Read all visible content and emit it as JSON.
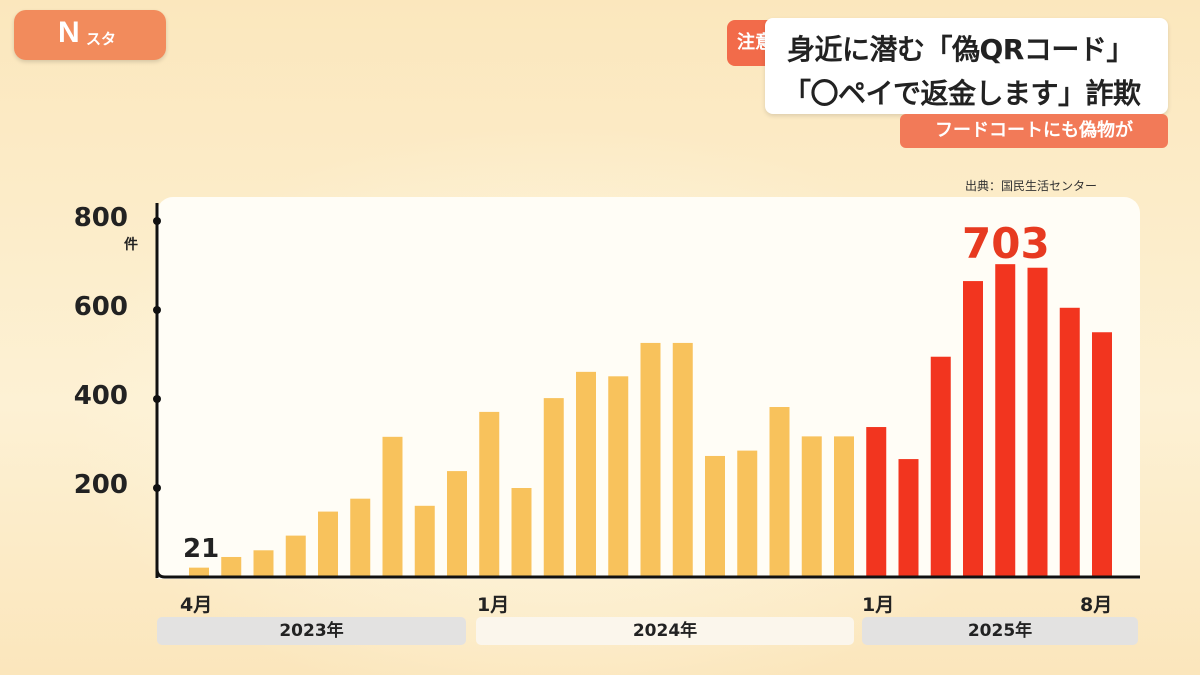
{
  "logo": {
    "letter": "N",
    "suffix": "スタ"
  },
  "headline": {
    "badge": "注意",
    "line1": "身近に潜む「偽QRコード」",
    "line2": "「〇ペイで返金します」詐欺",
    "sub": "フードコートにも偽物が"
  },
  "source": "出典：国民生活センター",
  "colors": {
    "past": "#f8c25c",
    "recent": "#f2351f",
    "peak_label": "#e73a20"
  },
  "chart_data": {
    "type": "bar",
    "ylim": [
      0,
      800
    ],
    "y_ticks": [
      "800",
      "600",
      "400",
      "200"
    ],
    "y_unit": "件",
    "x_tick_labels": {
      "first": "4月",
      "jan2024": "1月",
      "jan2025": "1月",
      "last": "8月"
    },
    "year_labels": [
      "2023年",
      "2024年",
      "2025年"
    ],
    "categories": [
      "2023-04",
      "2023-05",
      "2023-06",
      "2023-07",
      "2023-08",
      "2023-09",
      "2023-10",
      "2023-11",
      "2023-12",
      "2024-01",
      "2024-02",
      "2024-03",
      "2024-04",
      "2024-05",
      "2024-06",
      "2024-07",
      "2024-08",
      "2024-09",
      "2024-10",
      "2024-11",
      "2024-12",
      "2025-01",
      "2025-02",
      "2025-03",
      "2025-04",
      "2025-05",
      "2025-06",
      "2025-07",
      "2025-08"
    ],
    "values": [
      21,
      45,
      60,
      93,
      147,
      176,
      315,
      160,
      238,
      371,
      200,
      402,
      461,
      451,
      526,
      526,
      272,
      284,
      382,
      316,
      316,
      337,
      265,
      495,
      665,
      703,
      695,
      605,
      550
    ],
    "highlight_from_index": 21,
    "labels": {
      "first": "21",
      "peak": "703"
    }
  }
}
